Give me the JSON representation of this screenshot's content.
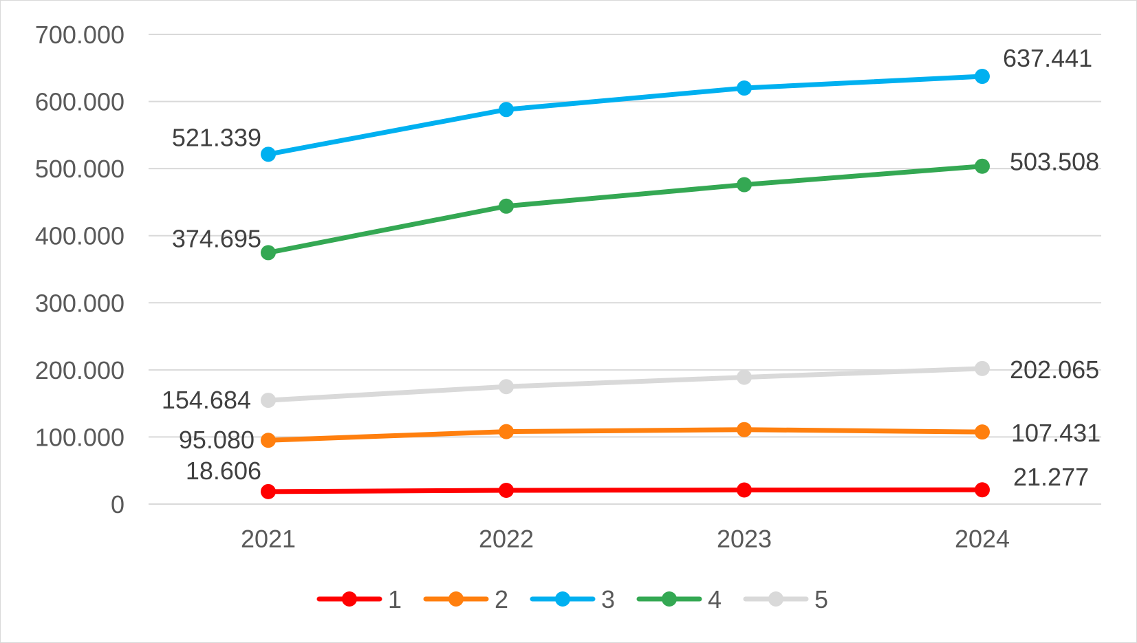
{
  "chart_data": {
    "type": "line",
    "title": "",
    "xlabel": "",
    "ylabel": "",
    "categories": [
      "2021",
      "2022",
      "2023",
      "2024"
    ],
    "ylim": [
      0,
      700000
    ],
    "yticks": [
      0,
      100000,
      200000,
      300000,
      400000,
      500000,
      600000,
      700000
    ],
    "ytick_labels": [
      "0",
      "100.000",
      "200.000",
      "300.000",
      "400.000",
      "500.000",
      "600.000",
      "700.000"
    ],
    "grid": true,
    "legend_position": "bottom",
    "series": [
      {
        "name": "1",
        "color": "#ff0000",
        "values": [
          18606,
          20500,
          21000,
          21277
        ],
        "first_label": "18.606",
        "last_label": "21.277"
      },
      {
        "name": "2",
        "color": "#ff7f0e",
        "values": [
          95080,
          108000,
          111000,
          107431
        ],
        "first_label": "95.080",
        "last_label": "107.431"
      },
      {
        "name": "3",
        "color": "#00b0f0",
        "values": [
          521339,
          588000,
          620000,
          637441
        ],
        "first_label": "521.339",
        "last_label": "637.441"
      },
      {
        "name": "4",
        "color": "#34a853",
        "values": [
          374695,
          444000,
          476000,
          503508
        ],
        "first_label": "374.695",
        "last_label": "503.508"
      },
      {
        "name": "5",
        "color": "#d9d9d9",
        "values": [
          154684,
          175000,
          189000,
          202065
        ],
        "first_label": "154.684",
        "last_label": "202.065"
      }
    ]
  }
}
